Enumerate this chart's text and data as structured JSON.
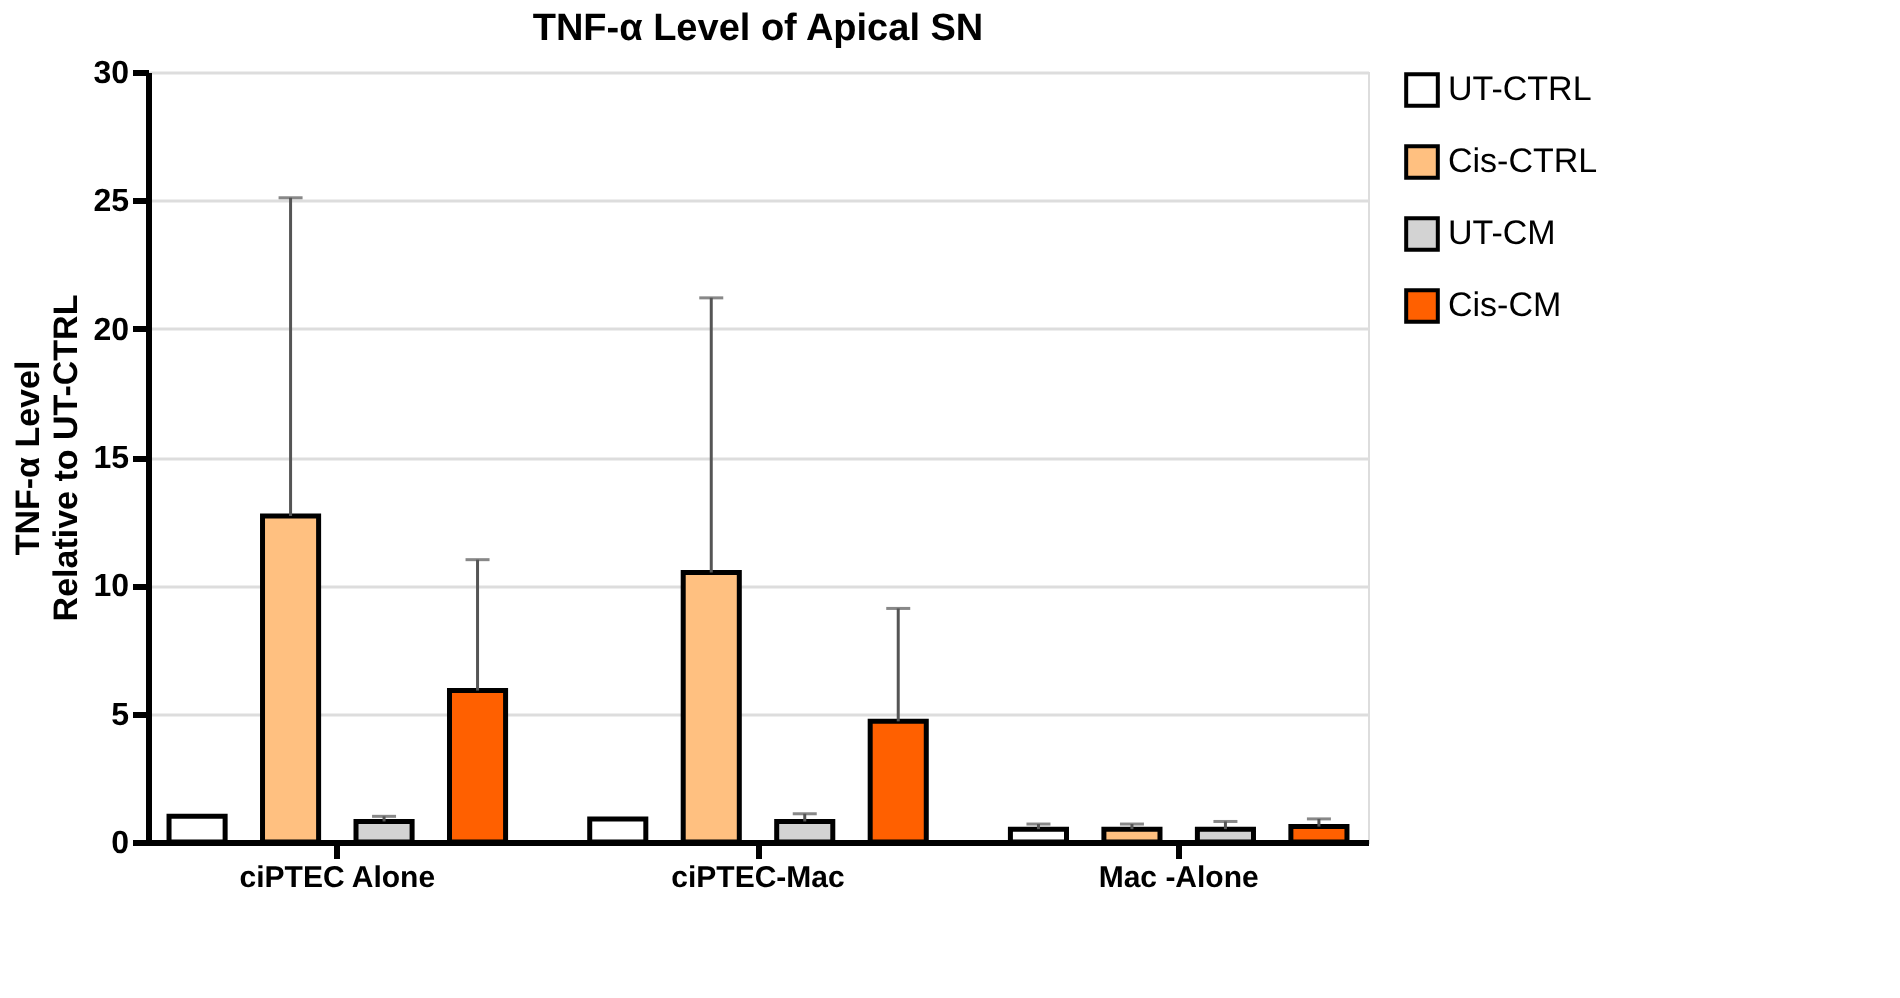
{
  "chart_data": {
    "type": "bar",
    "title": "TNF-α Level of Apical SN",
    "ylabel": "TNF-α Level\nRelative to UT-CTRL",
    "categories": [
      "ciPTEC Alone",
      "ciPTEC-Mac",
      "Mac -Alone"
    ],
    "series": [
      {
        "name": "UT-CTRL",
        "color": "#ffffff",
        "values": [
          1.0,
          0.9,
          0.5
        ],
        "errors": [
          null,
          null,
          [
            0.5,
            0.7
          ]
        ]
      },
      {
        "name": "Cis-CTRL",
        "color": "#ffc080",
        "values": [
          12.7,
          10.5,
          0.5
        ],
        "errors": [
          [
            12.7,
            25.1
          ],
          [
            10.5,
            21.2
          ],
          [
            0.5,
            0.7
          ]
        ]
      },
      {
        "name": "UT-CM",
        "color": "#d3d3d3",
        "values": [
          0.8,
          0.8,
          0.5
        ],
        "errors": [
          [
            0.8,
            1.0
          ],
          [
            0.8,
            1.1
          ],
          [
            0.5,
            0.8
          ]
        ]
      },
      {
        "name": "Cis-CM",
        "color": "#ff6000",
        "values": [
          5.9,
          4.7,
          0.6
        ],
        "errors": [
          [
            5.9,
            11.0
          ],
          [
            4.7,
            9.1
          ],
          [
            0.6,
            0.9
          ]
        ]
      }
    ],
    "ylim": [
      0,
      30
    ],
    "yticks": [
      0,
      5,
      10,
      15,
      20,
      25,
      30
    ],
    "grid": "y",
    "legend": "right"
  }
}
